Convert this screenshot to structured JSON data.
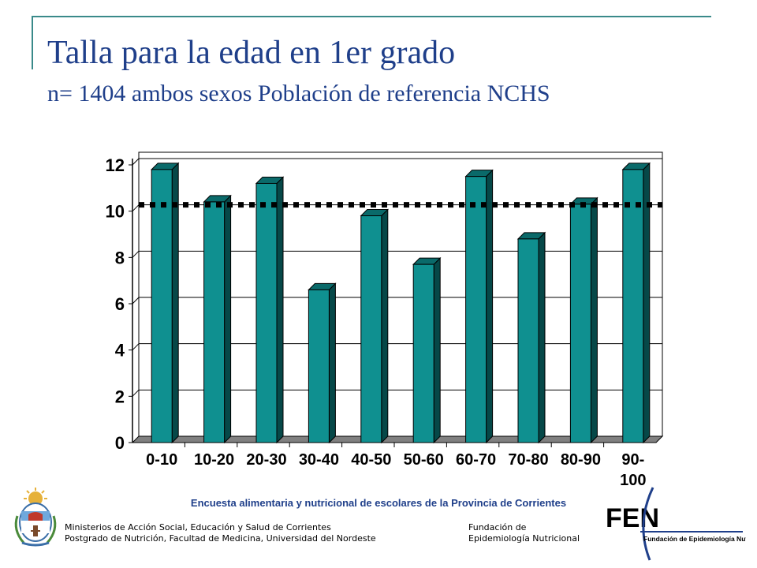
{
  "title": "Talla para la edad en 1er grado",
  "subtitle": "n= 1404 ambos sexos Población de referencia NCHS",
  "chart_data": {
    "type": "bar",
    "categories": [
      "0-10",
      "10-20",
      "20-30",
      "30-40",
      "40-50",
      "50-60",
      "60-70",
      "70-80",
      "80-90",
      "90-\n100"
    ],
    "values": [
      11.8,
      10.4,
      11.2,
      6.6,
      9.8,
      7.7,
      11.5,
      8.8,
      10.3,
      11.8
    ],
    "ylim": [
      0,
      12
    ],
    "yticks": [
      0,
      2,
      4,
      6,
      8,
      10,
      12
    ],
    "reference_line": 10,
    "grid": true,
    "colors": {
      "bar_front": "#0f9090",
      "bar_side": "#064848",
      "bar_top": "#0a6a6a",
      "floor": "#808080",
      "reference": "#000000"
    }
  },
  "footer": {
    "survey": "Encuesta alimentaria y  nutricional de escolares de la Provincia de Corrientes",
    "left_line1": "Ministerios de Acción Social, Educación y Salud de Corrientes",
    "left_line2": "Postgrado de Nutrición, Facultad de Medicina, Universidad del Nordeste",
    "right_line1": "Fundación de",
    "right_line2": "Epidemiología Nutricional",
    "fen_mark": "FEN",
    "fen_name": "Fundación de Epidemiología Nutricional"
  }
}
